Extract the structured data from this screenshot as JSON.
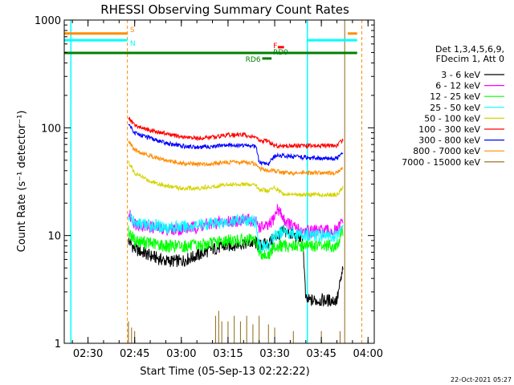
{
  "chart_data": {
    "type": "line",
    "title": "RHESSI Observing Summary Count Rates",
    "ylabel": "Count Rate (s⁻¹ detector⁻¹)",
    "xlabel": "Start Time (05-Sep-13 02:22:22)",
    "date_stamp": "22-Oct-2021 05:27",
    "ylog": true,
    "ylim": [
      1,
      1000
    ],
    "xlim": [
      "02:22:22",
      "04:02:00"
    ],
    "x_ticks": [
      "02:30",
      "02:45",
      "03:00",
      "03:15",
      "03:30",
      "03:45",
      "04:00"
    ],
    "y_ticks": [
      "1",
      "10",
      "100",
      "1000"
    ],
    "legend_header": [
      "Det 1,3,4,5,6,9,",
      "FDecim 1, Att 0"
    ],
    "series": [
      {
        "name": "3 - 6 keV",
        "color": "#000000",
        "x": [
          "02:43",
          "02:45",
          "02:50",
          "02:55",
          "03:00",
          "03:05",
          "03:10",
          "03:15",
          "03:20",
          "03:24",
          "03:25",
          "03:28",
          "03:30",
          "03:33",
          "03:36",
          "03:39",
          "03:40",
          "03:45",
          "03:50",
          "03:52"
        ],
        "y": [
          9,
          7.5,
          6.5,
          5.8,
          5.8,
          6.5,
          7.5,
          8,
          8.5,
          8.5,
          8,
          8.5,
          9.5,
          11,
          10,
          9.5,
          2.5,
          2.5,
          2.5,
          5
        ]
      },
      {
        "name": "6 - 12 keV",
        "color": "#ff00ff",
        "x": [
          "02:43",
          "02:45",
          "02:50",
          "02:55",
          "03:00",
          "03:05",
          "03:10",
          "03:15",
          "03:20",
          "03:24",
          "03:25",
          "03:28",
          "03:30",
          "03:31",
          "03:33",
          "03:36",
          "03:39",
          "03:40",
          "03:45",
          "03:50",
          "03:52"
        ],
        "y": [
          16,
          13,
          12,
          11.5,
          11.5,
          12,
          13,
          13.5,
          14,
          13.5,
          12,
          12,
          15,
          18,
          14,
          12,
          11,
          11,
          11,
          11,
          14
        ]
      },
      {
        "name": "12 - 25 keV",
        "color": "#00ff00",
        "x": [
          "02:43",
          "02:45",
          "02:50",
          "02:55",
          "03:00",
          "03:05",
          "03:10",
          "03:15",
          "03:20",
          "03:24",
          "03:25",
          "03:28",
          "03:30",
          "03:33",
          "03:36",
          "03:39",
          "03:40",
          "03:45",
          "03:50",
          "03:52"
        ],
        "y": [
          11,
          9,
          8.5,
          8,
          8,
          8,
          8.5,
          9,
          9,
          9,
          7,
          6.5,
          8,
          8,
          8,
          8,
          8,
          8,
          8,
          11
        ]
      },
      {
        "name": "25 - 50 keV",
        "color": "#00ffff",
        "x": [
          "02:43",
          "02:45",
          "02:50",
          "02:55",
          "03:00",
          "03:05",
          "03:10",
          "03:15",
          "03:20",
          "03:24",
          "03:25",
          "03:28",
          "03:30",
          "03:33",
          "03:36",
          "03:39",
          "03:40",
          "03:45",
          "03:50",
          "03:52"
        ],
        "y": [
          15,
          13,
          12.5,
          12,
          12,
          12.5,
          13,
          13.5,
          14,
          13.5,
          8,
          8,
          10,
          11,
          10.5,
          10,
          10,
          10,
          10,
          13
        ]
      },
      {
        "name": "50 - 100 keV",
        "color": "#d4d400",
        "x": [
          "02:43",
          "02:45",
          "02:50",
          "02:55",
          "03:00",
          "03:05",
          "03:10",
          "03:15",
          "03:20",
          "03:24",
          "03:25",
          "03:28",
          "03:30",
          "03:33",
          "03:36",
          "03:39",
          "03:40",
          "03:45",
          "03:50",
          "03:52"
        ],
        "y": [
          48,
          38,
          32,
          29,
          27.5,
          27.5,
          28.5,
          30,
          30,
          29,
          27,
          26,
          28,
          24,
          24,
          24,
          24,
          24,
          24,
          28
        ]
      },
      {
        "name": "100 - 300 keV",
        "color": "#ff0000",
        "x": [
          "02:43",
          "02:45",
          "02:50",
          "02:55",
          "03:00",
          "03:05",
          "03:10",
          "03:15",
          "03:20",
          "03:24",
          "03:25",
          "03:28",
          "03:30",
          "03:33",
          "03:36",
          "03:39",
          "03:40",
          "03:45",
          "03:50",
          "03:52"
        ],
        "y": [
          125,
          105,
          95,
          88,
          82,
          80,
          82,
          86,
          86,
          82,
          75,
          75,
          68,
          68,
          68,
          68,
          68,
          68,
          68,
          78
        ]
      },
      {
        "name": "300 - 800 keV",
        "color": "#0000ff",
        "x": [
          "02:43",
          "02:45",
          "02:50",
          "02:55",
          "03:00",
          "03:05",
          "03:10",
          "03:15",
          "03:20",
          "03:24",
          "03:25",
          "03:28",
          "03:30",
          "03:33",
          "03:36",
          "03:39",
          "03:40",
          "03:45",
          "03:50",
          "03:52"
        ],
        "y": [
          110,
          90,
          80,
          72,
          68,
          66,
          67,
          69,
          69,
          67,
          48,
          46,
          55,
          55,
          54,
          53,
          53,
          52,
          52,
          60
        ]
      },
      {
        "name": "800 - 7000 keV",
        "color": "#ff8c00",
        "x": [
          "02:43",
          "02:45",
          "02:50",
          "02:55",
          "03:00",
          "03:05",
          "03:10",
          "03:15",
          "03:20",
          "03:24",
          "03:25",
          "03:28",
          "03:30",
          "03:33",
          "03:36",
          "03:39",
          "03:40",
          "03:45",
          "03:50",
          "03:52"
        ],
        "y": [
          75,
          62,
          55,
          50,
          47,
          46,
          46.5,
          48,
          48,
          46,
          42,
          40,
          40,
          38,
          38,
          38,
          38,
          38,
          38,
          43
        ]
      },
      {
        "name": "7000 - 15000 keV",
        "color": "#8b6914",
        "x": [
          "02:43",
          "02:44",
          "02:45",
          "03:11",
          "03:12",
          "03:13",
          "03:15",
          "03:17",
          "03:19",
          "03:21",
          "03:23",
          "03:25",
          "03:28",
          "03:30",
          "03:36",
          "03:45",
          "03:51"
        ],
        "y": [
          1.6,
          1.4,
          1.3,
          1.8,
          2,
          1.6,
          1.6,
          1.8,
          1.6,
          1.8,
          1.5,
          1.8,
          1.5,
          1.4,
          1.3,
          1.3,
          1.3
        ]
      }
    ],
    "state_bars": [
      {
        "label": "S",
        "color": "#ff8c00",
        "level": 750,
        "segments": [
          [
            "02:22:22",
            "02:42:40"
          ],
          [
            "03:53:30",
            "03:56:30"
          ]
        ]
      },
      {
        "label": "N",
        "color": "#00ffff",
        "level": 650,
        "segments": [
          [
            "02:22:22",
            "02:42:40"
          ],
          [
            "03:40:30",
            "03:56:30"
          ]
        ]
      },
      {
        "label": "F",
        "color": "#ff0000",
        "level": 560,
        "segments": [
          [
            "03:31",
            "03:33"
          ]
        ]
      },
      {
        "label": "RD9",
        "color": "#008000",
        "level": 495,
        "segments": [
          [
            "02:22:22",
            "03:56:30"
          ]
        ]
      },
      {
        "label": "RD6",
        "color": "#008000",
        "level": 440,
        "segments": [
          [
            "03:26",
            "03:29"
          ]
        ]
      }
    ],
    "vertical_lines": [
      {
        "color": "#00ffff",
        "x": [
          "02:24:30",
          "03:40:30"
        ]
      },
      {
        "color": "#ff8c00",
        "style": "dashed",
        "x": [
          "02:42:40",
          "03:58:00"
        ]
      },
      {
        "color": "#8b6914",
        "x": [
          "03:52:30"
        ]
      }
    ]
  }
}
